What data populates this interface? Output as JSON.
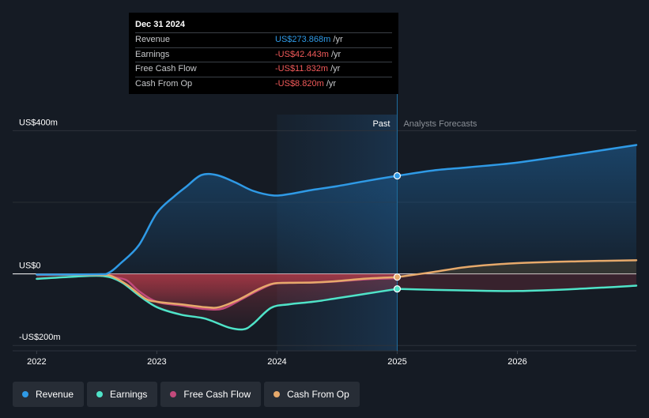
{
  "chart_data": {
    "type": "line",
    "x_unit": "year",
    "xlim": [
      2021.8,
      2026.99
    ],
    "ylim": [
      -215,
      445
    ],
    "x_ticks": [
      {
        "value": 2022,
        "label": "2022"
      },
      {
        "value": 2023,
        "label": "2023"
      },
      {
        "value": 2024,
        "label": "2024"
      },
      {
        "value": 2025,
        "label": "2025"
      },
      {
        "value": 2026,
        "label": "2026"
      }
    ],
    "y_ticks": [
      {
        "value": 400,
        "label": "US$400m"
      },
      {
        "value": 0,
        "label": "US$0"
      },
      {
        "value": -200,
        "label": "-US$200m"
      }
    ],
    "divider_x": 2025.0,
    "past_start_x": 2024.0,
    "past_label": "Past",
    "forecast_label": "Analysts Forecasts",
    "series": [
      {
        "name": "Revenue",
        "color": "#2f9ae6",
        "points": [
          [
            2022.0,
            -2
          ],
          [
            2022.5,
            -1
          ],
          [
            2022.6,
            3
          ],
          [
            2022.7,
            30
          ],
          [
            2022.85,
            80
          ],
          [
            2023.0,
            170
          ],
          [
            2023.15,
            218
          ],
          [
            2023.25,
            245
          ],
          [
            2023.37,
            276
          ],
          [
            2023.5,
            276
          ],
          [
            2023.65,
            256
          ],
          [
            2023.8,
            232
          ],
          [
            2023.97,
            219
          ],
          [
            2024.1,
            223
          ],
          [
            2024.3,
            235
          ],
          [
            2024.5,
            245
          ],
          [
            2024.75,
            260
          ],
          [
            2025.0,
            274
          ]
        ],
        "forecast": [
          [
            2025.0,
            274
          ],
          [
            2025.3,
            289
          ],
          [
            2025.6,
            298
          ],
          [
            2026.0,
            311
          ],
          [
            2026.5,
            335
          ],
          [
            2026.99,
            360
          ]
        ]
      },
      {
        "name": "Earnings",
        "color": "#4fe3c8",
        "points": [
          [
            2022.0,
            -14
          ],
          [
            2022.3,
            -8
          ],
          [
            2022.55,
            -6
          ],
          [
            2022.7,
            -22
          ],
          [
            2022.85,
            -60
          ],
          [
            2023.0,
            -93
          ],
          [
            2023.2,
            -114
          ],
          [
            2023.4,
            -125
          ],
          [
            2023.6,
            -150
          ],
          [
            2023.72,
            -155
          ],
          [
            2023.8,
            -140
          ],
          [
            2023.95,
            -95
          ],
          [
            2024.1,
            -85
          ],
          [
            2024.3,
            -78
          ],
          [
            2024.5,
            -68
          ],
          [
            2024.75,
            -55
          ],
          [
            2025.0,
            -42
          ]
        ],
        "forecast": [
          [
            2025.0,
            -42
          ],
          [
            2025.5,
            -46
          ],
          [
            2026.0,
            -48
          ],
          [
            2026.5,
            -42
          ],
          [
            2026.99,
            -33
          ]
        ]
      },
      {
        "name": "Free Cash Flow",
        "color": "#c34a7c",
        "points": [
          [
            2022.0,
            -2
          ],
          [
            2022.55,
            -3
          ],
          [
            2022.65,
            -10
          ],
          [
            2022.75,
            -18
          ],
          [
            2022.85,
            -48
          ],
          [
            2023.0,
            -78
          ],
          [
            2023.2,
            -88
          ],
          [
            2023.4,
            -98
          ],
          [
            2023.55,
            -97
          ],
          [
            2023.7,
            -72
          ],
          [
            2023.85,
            -45
          ],
          [
            2023.97,
            -28
          ],
          [
            2024.1,
            -25
          ],
          [
            2024.3,
            -24
          ],
          [
            2024.5,
            -21
          ],
          [
            2024.75,
            -15
          ],
          [
            2025.0,
            -12
          ]
        ],
        "forecast": []
      },
      {
        "name": "Cash From Op",
        "color": "#e6a96b",
        "points": [
          [
            2022.0,
            -2
          ],
          [
            2022.5,
            -3
          ],
          [
            2022.62,
            -6
          ],
          [
            2022.75,
            -30
          ],
          [
            2022.9,
            -68
          ],
          [
            2023.0,
            -78
          ],
          [
            2023.2,
            -85
          ],
          [
            2023.4,
            -93
          ],
          [
            2023.52,
            -93
          ],
          [
            2023.68,
            -72
          ],
          [
            2023.85,
            -42
          ],
          [
            2023.97,
            -27
          ],
          [
            2024.1,
            -25
          ],
          [
            2024.3,
            -24
          ],
          [
            2024.5,
            -20
          ],
          [
            2024.75,
            -13
          ],
          [
            2025.0,
            -9
          ]
        ],
        "forecast": [
          [
            2025.0,
            -9
          ],
          [
            2025.3,
            5
          ],
          [
            2025.6,
            20
          ],
          [
            2026.0,
            30
          ],
          [
            2026.5,
            35
          ],
          [
            2026.99,
            38
          ]
        ]
      }
    ],
    "tooltip": {
      "date": "Dec 31 2024",
      "rows": [
        {
          "label": "Revenue",
          "value": "US$273.868m",
          "unit": "/yr",
          "color": "#2f9ae6"
        },
        {
          "label": "Earnings",
          "value": "-US$42.443m",
          "unit": "/yr",
          "color": "#f25a5a"
        },
        {
          "label": "Free Cash Flow",
          "value": "-US$11.832m",
          "unit": "/yr",
          "color": "#f25a5a"
        },
        {
          "label": "Cash From Op",
          "value": "-US$8.820m",
          "unit": "/yr",
          "color": "#f25a5a"
        }
      ]
    }
  },
  "legend": [
    {
      "label": "Revenue",
      "color": "#2f9ae6"
    },
    {
      "label": "Earnings",
      "color": "#4fe3c8"
    },
    {
      "label": "Free Cash Flow",
      "color": "#c34a7c"
    },
    {
      "label": "Cash From Op",
      "color": "#e6a96b"
    }
  ]
}
